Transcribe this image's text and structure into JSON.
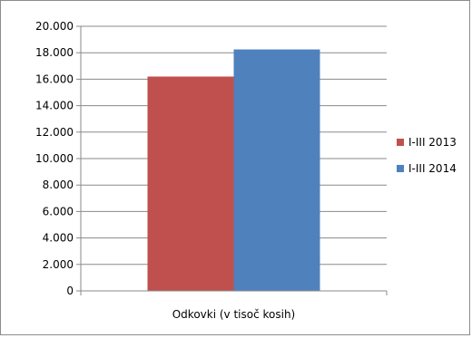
{
  "chart_data": {
    "type": "bar",
    "categories": [
      "Odkovki (v tisoč kosih)"
    ],
    "series": [
      {
        "name": "I-III 2013",
        "values": [
          16200
        ],
        "color": "#c0504d"
      },
      {
        "name": "I-III 2014",
        "values": [
          18250
        ],
        "color": "#4f81bd"
      }
    ],
    "ylim": [
      0,
      20000
    ],
    "yticks": [
      {
        "value": 0,
        "label": "0"
      },
      {
        "value": 2000,
        "label": "2.000"
      },
      {
        "value": 4000,
        "label": "4.000"
      },
      {
        "value": 6000,
        "label": "6.000"
      },
      {
        "value": 8000,
        "label": "8.000"
      },
      {
        "value": 10000,
        "label": "10.000"
      },
      {
        "value": 12000,
        "label": "12.000"
      },
      {
        "value": 14000,
        "label": "14.000"
      },
      {
        "value": 16000,
        "label": "16.000"
      },
      {
        "value": 18000,
        "label": "18.000"
      },
      {
        "value": 20000,
        "label": "20.000"
      }
    ],
    "grid": true,
    "legend_position": "right"
  }
}
